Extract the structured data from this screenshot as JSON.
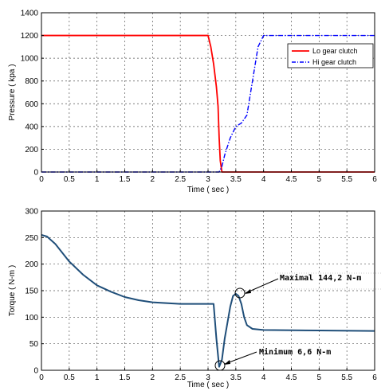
{
  "chart_data": [
    {
      "type": "line",
      "title": "",
      "xlabel": "Time ( sec )",
      "ylabel": "Pressure ( kpa )",
      "xlim": [
        0,
        6
      ],
      "ylim": [
        0,
        1400
      ],
      "xticks": [
        "0",
        "0.5",
        "1",
        "1.5",
        "2",
        "2.5",
        "3",
        "3.5",
        "4",
        "4.5",
        "5",
        "5.5",
        "6"
      ],
      "yticks": [
        "0",
        "200",
        "400",
        "600",
        "800",
        "1000",
        "1200",
        "1400"
      ],
      "grid": true,
      "legend_position": "top-right",
      "series": [
        {
          "name": "Lo gear clutch",
          "color": "#ff0000",
          "style": "solid",
          "x": [
            0,
            3.0,
            3.05,
            3.1,
            3.15,
            3.18,
            3.2,
            3.22,
            3.25,
            3.3,
            6
          ],
          "y": [
            1200,
            1200,
            1100,
            950,
            750,
            580,
            300,
            100,
            0,
            0,
            0
          ]
        },
        {
          "name": "Hi gear clutch",
          "color": "#0000ff",
          "style": "dashdot",
          "x": [
            0,
            3.2,
            3.25,
            3.3,
            3.4,
            3.5,
            3.6,
            3.7,
            3.8,
            3.9,
            4.0,
            6
          ],
          "y": [
            0,
            0,
            50,
            150,
            300,
            400,
            430,
            500,
            800,
            1100,
            1200,
            1200
          ]
        }
      ]
    },
    {
      "type": "line",
      "title": "",
      "xlabel": "Time ( sec )",
      "ylabel": "Torque ( N-m )",
      "xlim": [
        0,
        6
      ],
      "ylim": [
        0,
        300
      ],
      "xticks": [
        "0",
        "0.5",
        "1",
        "1.5",
        "2",
        "2.5",
        "3",
        "3.5",
        "4",
        "4.5",
        "5",
        "5.5",
        "6"
      ],
      "yticks": [
        "0",
        "50",
        "100",
        "150",
        "200",
        "250",
        "300"
      ],
      "grid": true,
      "series": [
        {
          "name": "",
          "color": "#1f4e79",
          "style": "solid",
          "x": [
            0,
            0.1,
            0.25,
            0.5,
            0.75,
            1.0,
            1.25,
            1.5,
            1.75,
            2.0,
            2.5,
            3.0,
            3.1,
            3.15,
            3.2,
            3.25,
            3.3,
            3.4,
            3.45,
            3.5,
            3.55,
            3.6,
            3.65,
            3.7,
            3.8,
            4.0,
            5.0,
            6.0
          ],
          "y": [
            255,
            252,
            238,
            205,
            180,
            160,
            148,
            138,
            132,
            128,
            125,
            125,
            125,
            60,
            6.6,
            20,
            60,
            120,
            140,
            144.2,
            140,
            125,
            100,
            85,
            78,
            76,
            75,
            74
          ]
        }
      ],
      "annotations": [
        {
          "text": "Maximal 144,2 N-m",
          "x": 3.55,
          "y": 144.2
        },
        {
          "text": "Minimum 6,6 N-m",
          "x": 3.2,
          "y": 6.6
        }
      ]
    }
  ]
}
